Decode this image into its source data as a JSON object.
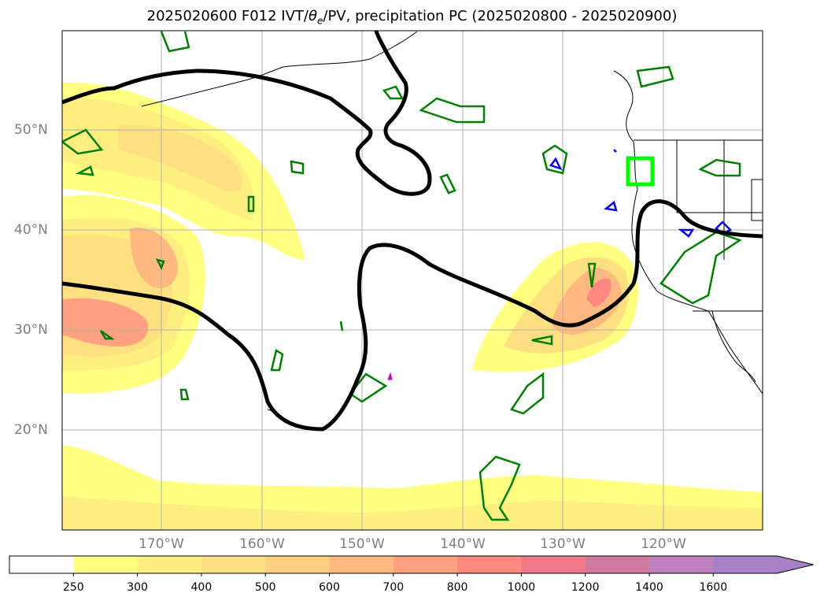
{
  "title": {
    "prefix": "2025020600 F012 IVT/",
    "theta": "θ",
    "theta_sub": "e",
    "suffix": "/PV, precipitation PC (2025020800 - 2025020900)"
  },
  "map": {
    "lat_labels": [
      "50°N",
      "40°N",
      "30°N",
      "20°N"
    ],
    "lon_labels": [
      "170°W",
      "160°W",
      "150°W",
      "140°W",
      "130°W",
      "120°W"
    ],
    "grid": true,
    "colors": {
      "ivt_contour": "#000000",
      "precip_contour": "#008000",
      "pv_contour": "#0000ff",
      "target_box": "#00ff00",
      "coastline": "#000000"
    }
  },
  "colorbar": {
    "ticks": [
      "250",
      "300",
      "400",
      "500",
      "600",
      "700",
      "800",
      "1000",
      "1200",
      "1400",
      "1600"
    ],
    "colors": [
      "#ffffff",
      "#ffff80",
      "#ffee80",
      "#ffe080",
      "#ffd080",
      "#ffb880",
      "#ffa080",
      "#ff8880",
      "#f07888",
      "#d07aa0",
      "#c080c0",
      "#a880c8"
    ],
    "extend": "max"
  }
}
